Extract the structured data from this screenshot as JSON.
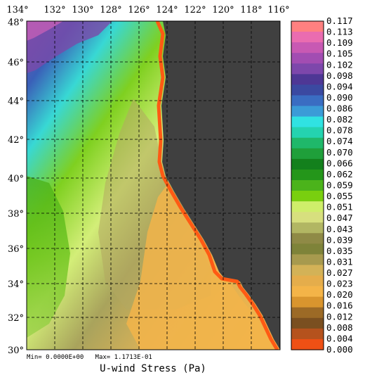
{
  "map": {
    "title": "U-wind Stress (Pa)",
    "stats": "Min= 0.0000E+00   Max= 1.1713E-01",
    "lon_labels": [
      "134°",
      "132°",
      "130°",
      "128°",
      "126°",
      "124°",
      "122°",
      "120°",
      "118°",
      "116°"
    ],
    "lat_labels": [
      "48°",
      "46°",
      "44°",
      "42°",
      "40°",
      "38°",
      "36°",
      "34°",
      "32°",
      "30°"
    ],
    "land_color": "#404040",
    "coast_color": "#ff5a14"
  },
  "colorbar": {
    "labels": [
      "0.117",
      "0.113",
      "0.109",
      "0.105",
      "0.102",
      "0.098",
      "0.094",
      "0.090",
      "0.086",
      "0.082",
      "0.078",
      "0.074",
      "0.070",
      "0.066",
      "0.062",
      "0.059",
      "0.055",
      "0.051",
      "0.047",
      "0.043",
      "0.039",
      "0.035",
      "0.031",
      "0.027",
      "0.023",
      "0.020",
      "0.016",
      "0.012",
      "0.008",
      "0.004",
      "0.000"
    ],
    "colors": [
      "#ff8080",
      "#ea6cb0",
      "#c859b3",
      "#a24db2",
      "#7d47ab",
      "#4e3795",
      "#3b49a1",
      "#3a6dc2",
      "#3b9bd7",
      "#30e2e2",
      "#24d3b0",
      "#1fb86a",
      "#1f9f3a",
      "#13801c",
      "#24961a",
      "#4bb31b",
      "#79cf0f",
      "#cfee6a",
      "#d7df7e",
      "#b2b663",
      "#8f8a46",
      "#7e8339",
      "#a79a4e",
      "#d3b257",
      "#e5ad4b",
      "#f4b448",
      "#d9952e",
      "#9c6a26",
      "#7a4f20",
      "#b5521d",
      "#ef5014"
    ]
  }
}
